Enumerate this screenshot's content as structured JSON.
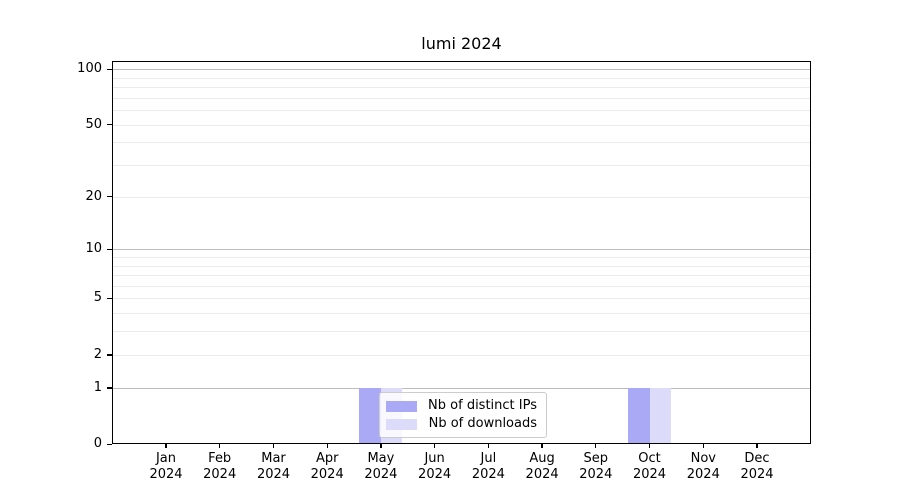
{
  "title": "lumi 2024",
  "legend": {
    "items": [
      {
        "label": "Nb of distinct IPs",
        "color": "#a9a9f6"
      },
      {
        "label": "Nb of downloads",
        "color": "#dcdcfa"
      }
    ],
    "position": "lower center"
  },
  "chart_data": {
    "type": "bar",
    "title": "lumi 2024",
    "categories": [
      "Jan",
      "Feb",
      "Mar",
      "Apr",
      "May",
      "Jun",
      "Jul",
      "Aug",
      "Sep",
      "Oct",
      "Nov",
      "Dec"
    ],
    "year_label": "2024",
    "series": [
      {
        "name": "Nb of distinct IPs",
        "color": "#a9a9f6",
        "values": [
          0,
          0,
          0,
          0,
          1,
          0,
          0,
          0,
          0,
          1,
          0,
          0
        ]
      },
      {
        "name": "Nb of downloads",
        "color": "#dcdcfa",
        "values": [
          0,
          0,
          0,
          0,
          1,
          0,
          0,
          0,
          0,
          1,
          0,
          0
        ]
      }
    ],
    "xlabel": "",
    "ylabel": "",
    "yscale": "log1p",
    "ylim": [
      0,
      112
    ],
    "ytick_labels": [
      0,
      1,
      2,
      5,
      10,
      20,
      50,
      100
    ],
    "y_gridlines_major": [
      1,
      10,
      100
    ],
    "y_gridlines_minor": [
      2,
      3,
      4,
      5,
      6,
      7,
      8,
      9,
      20,
      30,
      40,
      50,
      60,
      70,
      80,
      90
    ],
    "grid": "horizontal major+minor",
    "legend_position": "lower center"
  },
  "colors": {
    "bar_distinct_ips": "#a9a9f6",
    "bar_downloads": "#dcdcfa",
    "grid_major": "#bdbdbd",
    "grid_minor": "#ebebeb",
    "spine": "#000000",
    "background": "#ffffff"
  }
}
